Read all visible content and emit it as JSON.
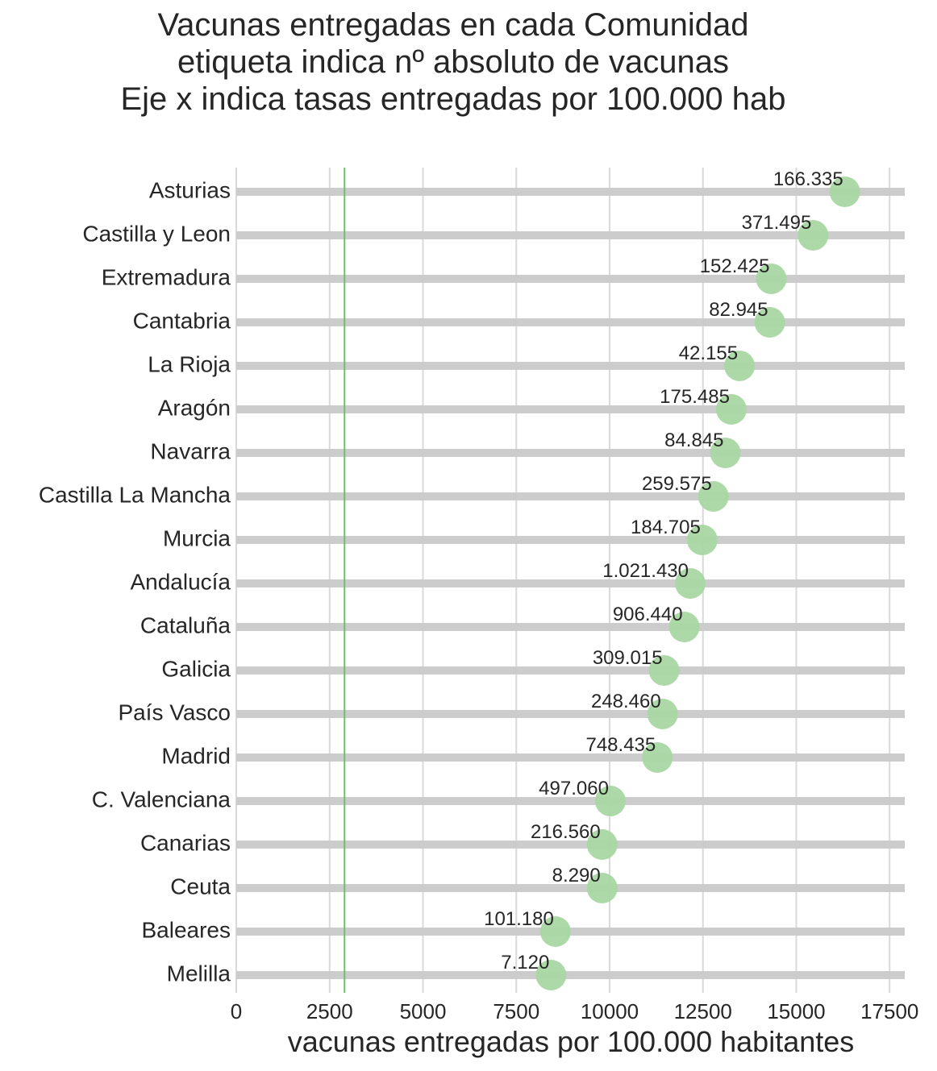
{
  "title": {
    "line1": "Vacunas entregadas en cada Comunidad",
    "line2": "etiqueta indica nº absoluto de vacunas",
    "line3": "Eje x indica tasas entregadas por 100.000 hab"
  },
  "chart_data": {
    "type": "scatter",
    "title": "Vacunas entregadas en cada Comunidad\netiqueta indica nº absoluto de vacunas\nEje x indica tasas entregadas por 100.000 hab",
    "xlabel": "vacunas entregadas por 100.000 habitantes",
    "ylabel": "",
    "xlim": [
      0,
      18000
    ],
    "xticks": [
      0,
      2500,
      5000,
      7500,
      10000,
      12500,
      15000,
      17500
    ],
    "reference_line_x": 2900,
    "grid": true,
    "colors": {
      "marker": "#a9d7a3",
      "reference_line": "#6cbf6c",
      "row_bar": "#cccccc",
      "grid": "#d9d9d9"
    },
    "categories": [
      "Asturias",
      "Castilla y Leon",
      "Extremadura",
      "Cantabria",
      "La Rioja",
      "Aragón",
      "Navarra",
      "Castilla La Mancha",
      "Murcia",
      "Andalucía",
      "Cataluña",
      "Galicia",
      "País Vasco",
      "Madrid",
      "C. Valenciana",
      "Canarias",
      "Ceuta",
      "Baleares",
      "Melilla"
    ],
    "values": [
      16300,
      15450,
      14330,
      14290,
      13480,
      13260,
      13100,
      12780,
      12480,
      12160,
      12000,
      11460,
      11420,
      11280,
      10020,
      9800,
      9800,
      8550,
      8430
    ],
    "labels": [
      "166.335",
      "371.495",
      "152.425",
      "82.945",
      "42.155",
      "175.485",
      "84.845",
      "259.575",
      "184.705",
      "1.021.430",
      "906.440",
      "309.015",
      "248.460",
      "748.435",
      "497.060",
      "216.560",
      "8.290",
      "101.180",
      "7.120"
    ]
  }
}
